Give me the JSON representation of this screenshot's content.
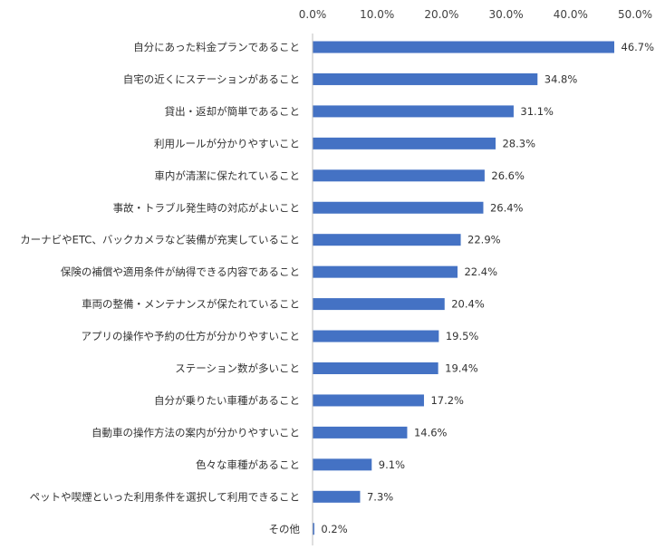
{
  "chart_data": {
    "type": "bar",
    "orientation": "horizontal",
    "categories": [
      "自分にあった料金プランであること",
      "自宅の近くにステーションがあること",
      "貸出・返却が簡単であること",
      "利用ルールが分かりやすいこと",
      "車内が清潔に保たれていること",
      "事故・トラブル発生時の対応がよいこと",
      "カーナビやETC、バックカメラなど装備が充実していること",
      "保険の補償や適用条件が納得できる内容であること",
      "車両の整備・メンテナンスが保たれていること",
      "アプリの操作や予約の仕方が分かりやすいこと",
      "ステーション数が多いこと",
      "自分が乗りたい車種があること",
      "自動車の操作方法の案内が分かりやすいこと",
      "色々な車種があること",
      "ペットや喫煙といった利用条件を選択して利用できること",
      "その他"
    ],
    "values": [
      46.7,
      34.8,
      31.1,
      28.3,
      26.6,
      26.4,
      22.9,
      22.4,
      20.4,
      19.5,
      19.4,
      17.2,
      14.6,
      9.1,
      7.3,
      0.2
    ],
    "data_labels": [
      "46.7%",
      "34.8%",
      "31.1%",
      "28.3%",
      "26.6%",
      "26.4%",
      "22.9%",
      "22.4%",
      "20.4%",
      "19.5%",
      "19.4%",
      "17.2%",
      "14.6%",
      "9.1%",
      "7.3%",
      "0.2%"
    ],
    "tick_labels": [
      "0.0%",
      "10.0%",
      "20.0%",
      "30.0%",
      "40.0%",
      "50.0%"
    ],
    "xlim": [
      0,
      50
    ],
    "axis_position": "top",
    "grid": false,
    "bar_color": "#4472C4",
    "title": "",
    "xlabel": "",
    "ylabel": ""
  }
}
